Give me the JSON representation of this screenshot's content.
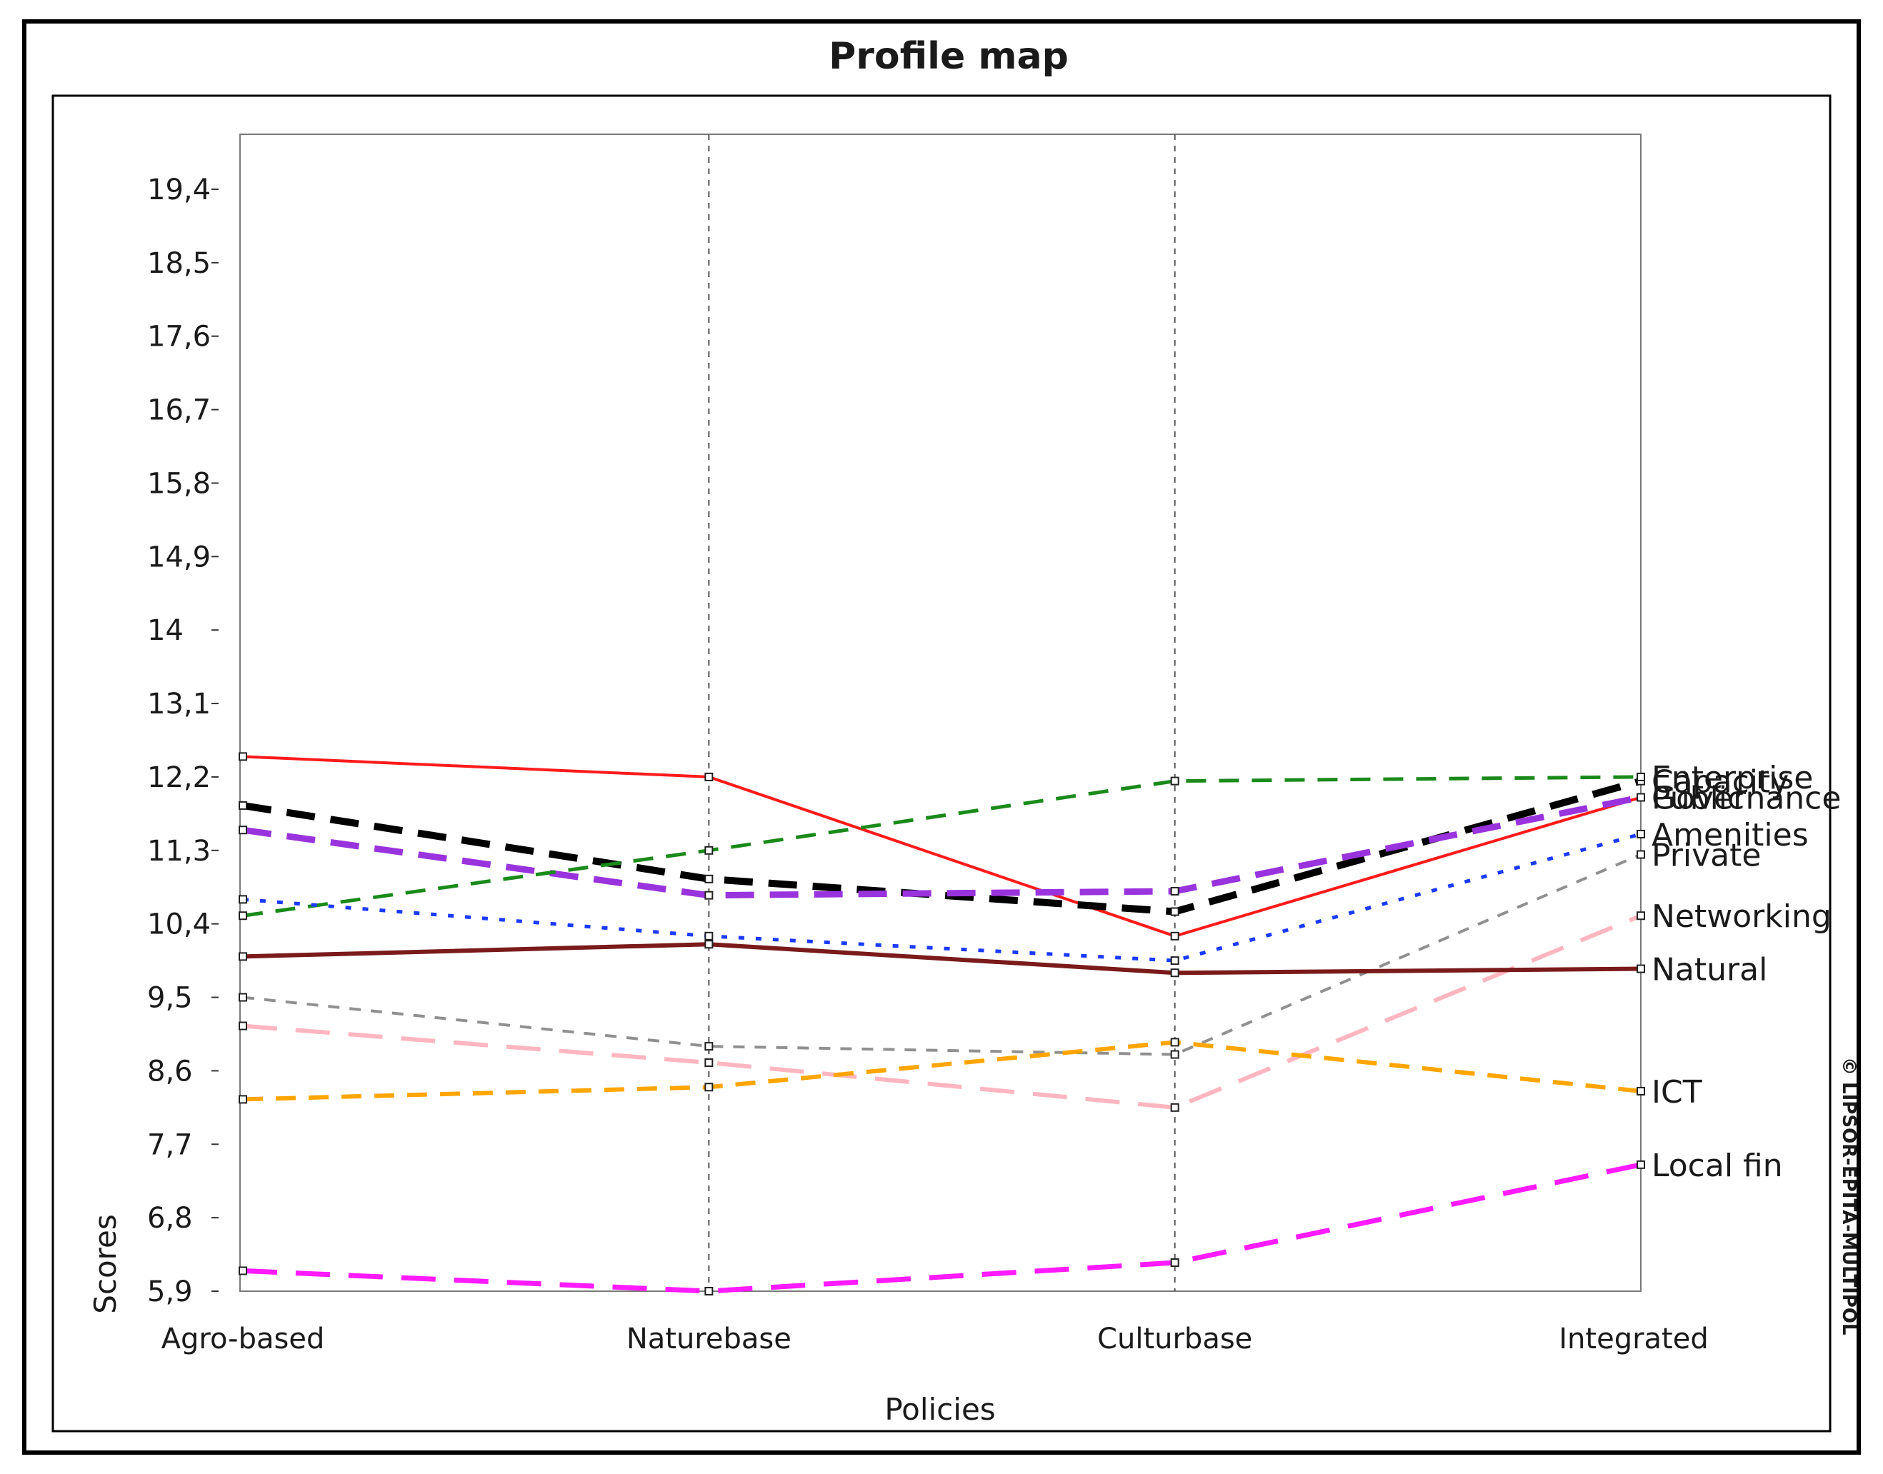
{
  "chart_data": {
    "type": "line",
    "title": "Profile map",
    "xlabel": "Policies",
    "ylabel": "Scores",
    "categories": [
      "Agro-based",
      "Naturebase",
      "Culturbase",
      "Integrated"
    ],
    "y_ticks": [
      "19,4",
      "18,5",
      "17,6",
      "16,7",
      "15,8",
      "14,9",
      "14",
      "13,1",
      "12,2",
      "11,3",
      "10,4",
      "9,5",
      "8,6",
      "7,7",
      "6,8",
      "5,9"
    ],
    "ylim": [
      5.9,
      20.1
    ],
    "grid": "vertical dashed at categories",
    "copyright": "© LIPSOR-EPITA-MULTIPOL",
    "series": [
      {
        "name": "Governance",
        "values": [
          12.45,
          12.2,
          10.25,
          11.95
        ],
        "color": "#ff1a1a",
        "style": "solid",
        "width": 4
      },
      {
        "name": "Capacity",
        "values": [
          11.85,
          10.95,
          10.55,
          12.15
        ],
        "color": "#000000",
        "style": "dashed-bold",
        "width": 10
      },
      {
        "name": "Public",
        "values": [
          11.55,
          10.75,
          10.8,
          11.95
        ],
        "color": "#9933dd",
        "style": "dashed-bold",
        "width": 9
      },
      {
        "name": "Enterprise",
        "values": [
          10.5,
          11.3,
          12.15,
          12.2
        ],
        "color": "#1a8a1a",
        "style": "dashed",
        "width": 5
      },
      {
        "name": "Amenities",
        "values": [
          10.7,
          10.25,
          9.95,
          11.5
        ],
        "color": "#1a3aff",
        "style": "dotted",
        "width": 5
      },
      {
        "name": "Private",
        "values": [
          9.5,
          8.9,
          8.8,
          11.25
        ],
        "color": "#909090",
        "style": "dashed-short",
        "width": 4
      },
      {
        "name": "Networking",
        "values": [
          9.15,
          8.7,
          8.15,
          10.5
        ],
        "color": "#ffb6c1",
        "style": "dashed-long",
        "width": 6
      },
      {
        "name": "Natural",
        "values": [
          10.0,
          10.15,
          9.8,
          9.85
        ],
        "color": "#7a1a1a",
        "style": "solid",
        "width": 6
      },
      {
        "name": "ICT",
        "values": [
          8.25,
          8.4,
          8.95,
          8.35
        ],
        "color": "#ffa500",
        "style": "dashed",
        "width": 6
      },
      {
        "name": "Local fin",
        "values": [
          6.15,
          5.9,
          6.25,
          7.45
        ],
        "color": "#ff1aff",
        "style": "dashed-long",
        "width": 7
      }
    ]
  }
}
